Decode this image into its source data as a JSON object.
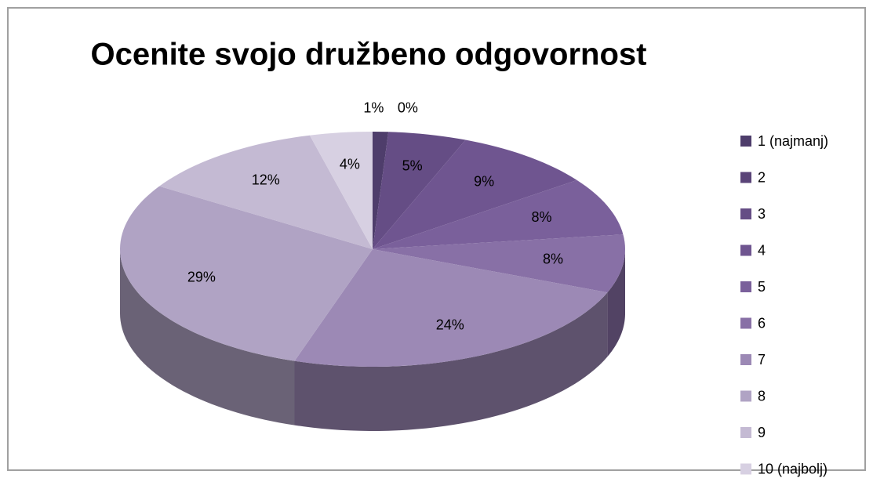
{
  "chart_data": {
    "type": "pie3d",
    "title": "Ocenite svojo družbeno odgovornost",
    "categories": [
      "1 (najmanj)",
      "2",
      "3",
      "4",
      "5",
      "6",
      "7",
      "8",
      "9",
      "10 (najbolj)"
    ],
    "values": [
      1,
      0,
      5,
      9,
      8,
      8,
      24,
      29,
      12,
      4
    ],
    "value_labels": [
      "1%",
      "0%",
      "5%",
      "9%",
      "8%",
      "8%",
      "24%",
      "29%",
      "12%",
      "4%"
    ],
    "colors": [
      "#4e3d6b",
      "#5a4478",
      "#654d85",
      "#6f5590",
      "#7a609b",
      "#8870a6",
      "#9c89b5",
      "#b0a3c4",
      "#c4bad3",
      "#d7d0e2"
    ],
    "legend": "right"
  }
}
